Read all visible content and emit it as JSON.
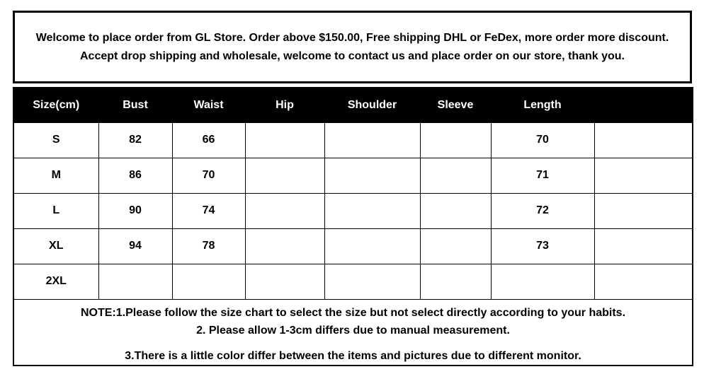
{
  "banner": {
    "text": "Welcome to place order from GL Store. Order above $150.00, Free shipping DHL or FeDex, more order more discount. Accept drop shipping and wholesale, welcome to contact us and place order on our store, thank you."
  },
  "chart_data": {
    "type": "table",
    "title": "Garment size chart (cm)",
    "columns": [
      "Size(cm)",
      "Bust",
      "Waist",
      "Hip",
      "Shoulder",
      "Sleeve",
      "Length",
      ""
    ],
    "rows": [
      [
        "S",
        "82",
        "66",
        "",
        "",
        "",
        "70",
        ""
      ],
      [
        "M",
        "86",
        "70",
        "",
        "",
        "",
        "71",
        ""
      ],
      [
        "L",
        "90",
        "74",
        "",
        "",
        "",
        "72",
        ""
      ],
      [
        "XL",
        "94",
        "78",
        "",
        "",
        "",
        "73",
        ""
      ],
      [
        "2XL",
        "",
        "",
        "",
        "",
        "",
        "",
        ""
      ]
    ]
  },
  "notes": {
    "line1": "NOTE:1.Please follow the size chart to select the size but not select directly according to your habits.",
    "line2": "2. Please allow 1-3cm differs due to manual measurement.",
    "line3": "3.There is a little color differ between the items and pictures due to different monitor."
  },
  "colors": {
    "background": "#ffffff",
    "border": "#000000",
    "header_bg": "#000000",
    "header_text": "#ffffff",
    "text": "#000000"
  }
}
